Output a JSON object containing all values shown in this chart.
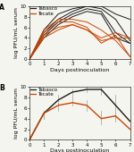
{
  "panel_A": {
    "days": [
      0,
      1,
      2,
      3,
      4,
      5,
      6,
      7
    ],
    "tabasco_lines": [
      [
        0,
        5.5,
        8.5,
        9.5,
        10.0,
        10.0,
        8.5,
        7.5
      ],
      [
        0,
        5.0,
        7.5,
        9.0,
        10.0,
        9.5,
        7.5,
        3.5
      ],
      [
        0,
        4.5,
        7.0,
        8.5,
        9.5,
        9.0,
        5.0,
        3.0
      ],
      [
        0,
        4.0,
        6.5,
        8.0,
        9.0,
        8.5,
        4.0,
        3.0
      ]
    ],
    "tecate_lines": [
      [
        0,
        5.5,
        7.5,
        7.5,
        7.0,
        5.5,
        3.5,
        0.5
      ],
      [
        0,
        5.0,
        7.0,
        7.0,
        6.0,
        3.0,
        4.5,
        0.5
      ],
      [
        0,
        4.5,
        6.0,
        6.5,
        5.5,
        4.0,
        5.0,
        4.0
      ],
      [
        0,
        4.0,
        5.5,
        6.5,
        5.5,
        3.5,
        4.0,
        4.0
      ]
    ],
    "ylabel": "log PFU/mL serum",
    "ylim": [
      0,
      10
    ],
    "yticks": [
      0,
      2,
      4,
      6,
      8,
      10
    ],
    "ytick_labels": [
      "0",
      "2",
      "4",
      "6",
      "8",
      "10"
    ],
    "xlim": [
      0,
      7
    ],
    "xticks": [
      0,
      1,
      2,
      3,
      4,
      5,
      6,
      7
    ],
    "xlabel": "Days postinoculation",
    "label": "A",
    "legend_tabasco": "Tabasco",
    "legend_tecate": "Tecate"
  },
  "panel_B": {
    "days": [
      0,
      1,
      2,
      3,
      4,
      5,
      6,
      7
    ],
    "tabasco_mean": [
      0,
      5.0,
      7.5,
      9.0,
      9.5,
      9.5,
      6.5,
      3.5
    ],
    "tabasco_lo": [
      0,
      4.0,
      6.5,
      8.0,
      9.0,
      8.5,
      4.0,
      3.0
    ],
    "tabasco_hi": [
      0,
      5.5,
      8.5,
      9.5,
      10.0,
      10.0,
      8.5,
      4.0
    ],
    "tecate_mean": [
      0,
      5.0,
      6.5,
      7.0,
      6.5,
      4.0,
      4.5,
      2.0
    ],
    "tecate_lo": [
      0,
      4.0,
      5.5,
      6.5,
      5.5,
      3.0,
      3.5,
      0.5
    ],
    "tecate_hi": [
      0,
      5.5,
      7.5,
      8.0,
      7.5,
      5.5,
      5.0,
      4.0
    ],
    "ylabel": "log PFU/mL serum",
    "ylim": [
      0,
      10
    ],
    "yticks": [
      0,
      2,
      4,
      6,
      8,
      10
    ],
    "ytick_labels": [
      "0",
      "2",
      "4",
      "6",
      "8",
      "10"
    ],
    "xlim": [
      0,
      7
    ],
    "xticks": [
      0,
      1,
      2,
      3,
      4,
      5,
      6,
      7
    ],
    "xlabel": "Days postinoculation",
    "label": "B",
    "legend_tabasco": "Tabasco",
    "legend_tecate": "Tecate"
  },
  "tabasco_color": "#1a1a1a",
  "tecate_color": "#cc4400",
  "errbar_color": "#aaaaaa",
  "background_color": "#f5f5f0",
  "label_fontsize": 5.5,
  "tick_fontsize": 4.0,
  "axis_label_fontsize": 4.5,
  "legend_fontsize": 4.0,
  "linewidth_individual": 0.7,
  "linewidth_mean": 1.0,
  "errbar_linewidth": 0.6
}
